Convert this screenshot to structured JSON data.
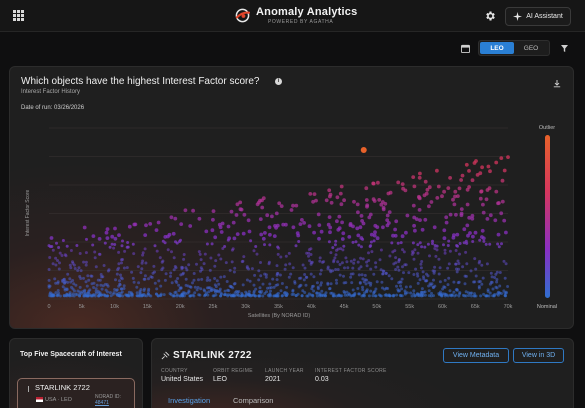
{
  "header": {
    "title": "Anomaly Analytics",
    "subtitle": "POWERED BY AGATHA",
    "ai_button": "AI Assistant"
  },
  "toolbar": {
    "orbit_options": [
      "LEO",
      "GEO"
    ],
    "selected_orbit": "LEO"
  },
  "chart_card": {
    "title": "Which objects have the highest Interest Factor score?",
    "subtitle": "Interest Factor History",
    "date_label": "Date of run: 03/26/2026",
    "legend_top": "Outlier",
    "legend_bottom": "Nominal"
  },
  "chart_data": {
    "type": "scatter",
    "xlabel": "Satellites (By NORAD ID)",
    "ylabel": "Interest Factor Score",
    "x_ticks": [
      "0",
      "5k",
      "10k",
      "15k",
      "20k",
      "25k",
      "30k",
      "35k",
      "40k",
      "45k",
      "50k",
      "55k",
      "60k",
      "65k",
      "70k"
    ],
    "xlim": [
      0,
      70000
    ],
    "grid": true,
    "color_scale": [
      "#2f6fd1",
      "#8a2fc4",
      "#d6365e",
      "#e8622a"
    ],
    "outlier_point": {
      "x": 48000,
      "label": "Outlier"
    }
  },
  "top_five": {
    "title": "Top Five Spacecraft of Interest",
    "items": [
      {
        "name": "STARLINK 2722",
        "meta": "USA · LEO",
        "norad_label": "NORAD ID:",
        "norad_value": "48471"
      }
    ]
  },
  "detail": {
    "title": "STARLINK 2722",
    "view_metadata": "View Metadata",
    "view_3d": "View in 3D",
    "fields": [
      {
        "key": "COUNTRY",
        "value": "United States"
      },
      {
        "key": "ORBIT REGIME",
        "value": "LEO"
      },
      {
        "key": "LAUNCH YEAR",
        "value": "2021"
      },
      {
        "key": "INTEREST FACTOR SCORE",
        "value": "0.03"
      }
    ],
    "tabs": [
      "Investigation",
      "Comparison"
    ]
  }
}
